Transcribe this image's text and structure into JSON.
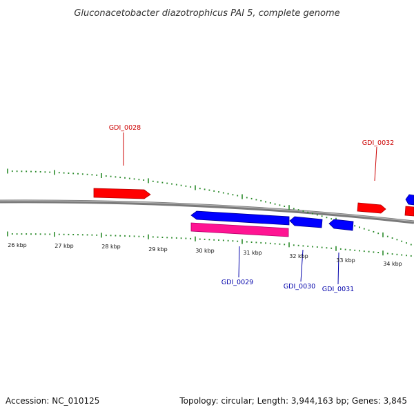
{
  "title": "Gluconacetobacter diazotrophicus PAI 5, complete genome",
  "footer": {
    "accession": "Accession: NC_010125",
    "summary": "Topology: circular; Length: 3,944,163 bp; Genes: 3,845"
  },
  "colors": {
    "backbone": "#8a8a8a",
    "tick": "#2a8a2a",
    "forward_gene": "#ff0000",
    "reverse_gene": "#0000ff",
    "reverse_feature": "#ff1493",
    "forward_label": "#cc0000",
    "reverse_label": "#0000aa"
  },
  "scale_labels": [
    "26 kbp",
    "27 kbp",
    "28 kbp",
    "29 kbp",
    "30 kbp",
    "31 kbp",
    "32 kbp",
    "33 kbp",
    "34 kbp"
  ],
  "gene_labels": {
    "forward": [
      "GDI_0028",
      "GDI_0032"
    ],
    "reverse": [
      "GDI_0029",
      "GDI_0030",
      "GDI_0031"
    ]
  },
  "genes": [
    {
      "id": "GDI_0028",
      "strand": "+",
      "start_kbp": 27.6,
      "end_kbp": 28.8,
      "kind": "gene"
    },
    {
      "id": "GDI_0032",
      "strand": "+",
      "start_kbp": 33.35,
      "end_kbp": 33.9,
      "kind": "gene"
    },
    {
      "id": "",
      "strand": "+",
      "start_kbp": 34.4,
      "end_kbp": 34.7,
      "kind": "gene"
    },
    {
      "id": "GDI_0029",
      "strand": "-",
      "start_kbp": 30.0,
      "end_kbp": 32.1,
      "kind": "gene"
    },
    {
      "id": "GDI_0029",
      "strand": "-",
      "start_kbp": 30.0,
      "end_kbp": 32.1,
      "kind": "feature"
    },
    {
      "id": "GDI_0030",
      "strand": "-",
      "start_kbp": 32.1,
      "end_kbp": 32.85,
      "kind": "gene"
    },
    {
      "id": "GDI_0031",
      "strand": "-",
      "start_kbp": 33.0,
      "end_kbp": 33.5,
      "kind": "gene"
    },
    {
      "id": "",
      "strand": "-",
      "start_kbp": 34.4,
      "end_kbp": 34.7,
      "kind": "gene"
    }
  ]
}
